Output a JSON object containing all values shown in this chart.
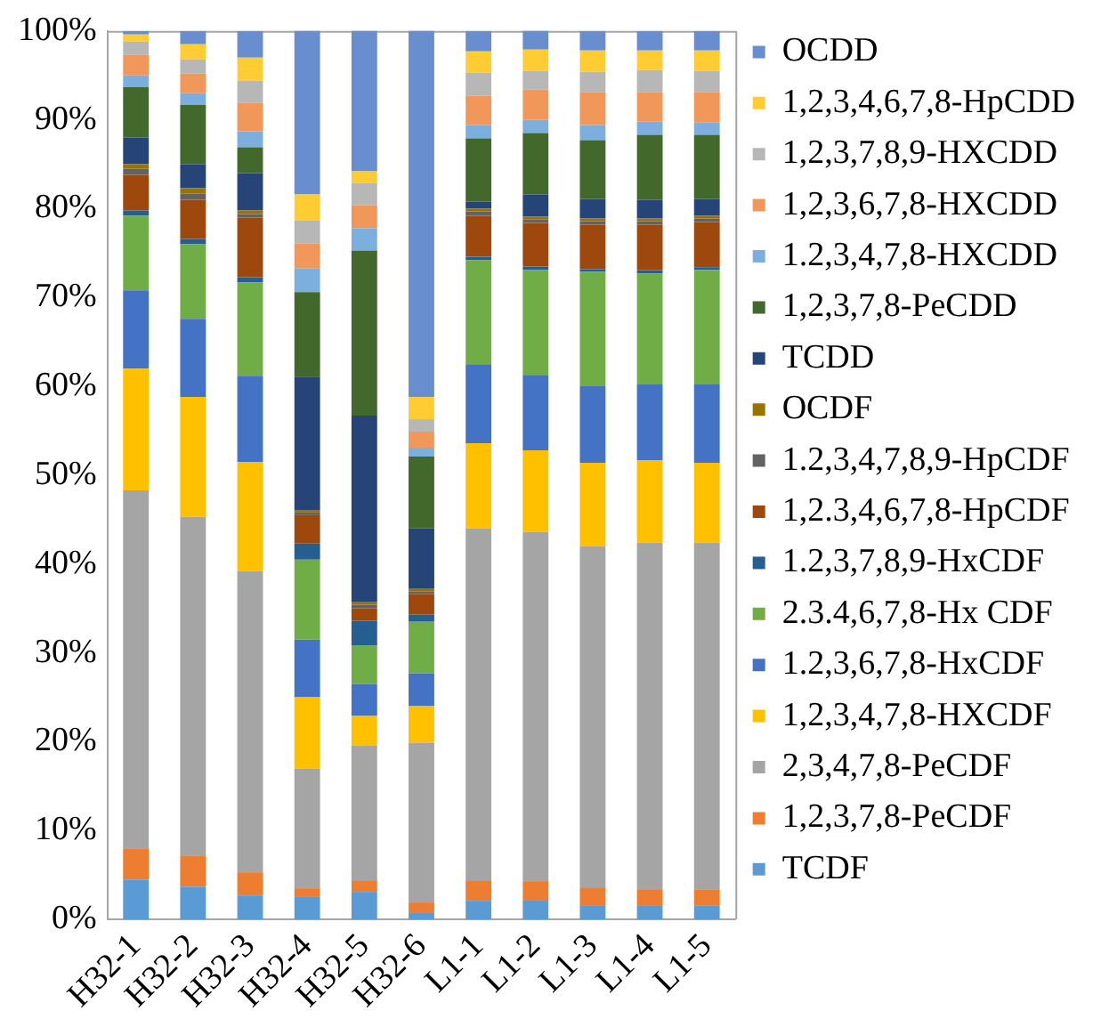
{
  "chart_data": {
    "type": "bar",
    "stacked": true,
    "categories": [
      "H32-1",
      "H32-2",
      "H32-3",
      "H32-4",
      "H32-5",
      "H32-6",
      "L1-1",
      "L1-2",
      "L1-3",
      "L1-4",
      "L1-5"
    ],
    "ylim": [
      0,
      100
    ],
    "yticks": [
      {
        "value": 0,
        "label": "0%"
      },
      {
        "value": 10,
        "label": "10%"
      },
      {
        "value": 20,
        "label": "20%"
      },
      {
        "value": 30,
        "label": "30%"
      },
      {
        "value": 40,
        "label": "40%"
      },
      {
        "value": 50,
        "label": "50%"
      },
      {
        "value": 60,
        "label": "60%"
      },
      {
        "value": 70,
        "label": "70%"
      },
      {
        "value": 80,
        "label": "80%"
      },
      {
        "value": 90,
        "label": "90%"
      },
      {
        "value": 100,
        "label": "100%"
      }
    ],
    "grid": false,
    "legend": "right",
    "series": [
      {
        "name": "TCDF",
        "color": "#5b9bd5",
        "values": [
          4.5,
          3.7,
          2.7,
          2.6,
          3.1,
          0.8,
          2.1,
          2.2,
          1.6,
          1.6,
          1.6
        ]
      },
      {
        "name": "1,2,3,7,8-PeCDF",
        "color": "#ed7d31",
        "values": [
          3.5,
          3.5,
          2.6,
          0.9,
          1.3,
          1.1,
          2.3,
          2.1,
          2.0,
          1.8,
          1.8
        ]
      },
      {
        "name": "2,3,4,7,8-PeCDF",
        "color": "#a5a5a5",
        "values": [
          40.3,
          38.1,
          33.9,
          13.5,
          15.2,
          18.0,
          39.6,
          39.3,
          38.4,
          39.0,
          39.0
        ]
      },
      {
        "name": "1,2,3,4,7,8-HXCDF",
        "color": "#ffc000",
        "values": [
          13.7,
          13.5,
          12.3,
          8.0,
          3.3,
          4.1,
          9.6,
          9.2,
          9.4,
          9.3,
          9.0
        ]
      },
      {
        "name": "1.2,3,6,7,8-HxCDF",
        "color": "#4472c4",
        "values": [
          8.8,
          8.8,
          9.7,
          6.5,
          3.6,
          3.7,
          8.9,
          8.5,
          8.6,
          8.5,
          8.8
        ]
      },
      {
        "name": "2.3.4,6,7,8-Hx CDF",
        "color": "#70ad47",
        "values": [
          8.4,
          8.4,
          10.5,
          9.0,
          4.3,
          5.8,
          11.7,
          11.8,
          12.9,
          12.5,
          12.9
        ]
      },
      {
        "name": "1.2,3,7,8,9-HxCDF",
        "color": "#255e91",
        "values": [
          0.6,
          0.6,
          0.6,
          1.8,
          2.8,
          0.8,
          0.4,
          0.4,
          0.3,
          0.4,
          0.3
        ]
      },
      {
        "name": "1,2.3,4,6,7,8-HpCDF",
        "color": "#9e480e",
        "values": [
          4.0,
          4.4,
          6.7,
          3.2,
          1.4,
          2.3,
          4.6,
          4.9,
          5.0,
          5.1,
          5.1
        ]
      },
      {
        "name": "1.2,3,4,7,8,9-HpCDF",
        "color": "#636363",
        "values": [
          0.7,
          0.7,
          0.4,
          0.3,
          0.4,
          0.3,
          0.5,
          0.4,
          0.4,
          0.4,
          0.4
        ]
      },
      {
        "name": "OCDF",
        "color": "#997300",
        "values": [
          0.5,
          0.6,
          0.4,
          0.3,
          0.3,
          0.3,
          0.3,
          0.3,
          0.3,
          0.3,
          0.3
        ]
      },
      {
        "name": "TCDD",
        "color": "#264478",
        "values": [
          3.0,
          2.7,
          4.2,
          15.0,
          21.0,
          6.8,
          0.8,
          2.5,
          2.2,
          2.1,
          1.9
        ]
      },
      {
        "name": "1,2,3,7,8-PeCDD",
        "color": "#43682b",
        "values": [
          5.7,
          6.7,
          2.9,
          9.5,
          18.6,
          8.1,
          7.1,
          6.9,
          6.6,
          7.3,
          7.2
        ]
      },
      {
        "name": "1.2,3,4,7,8-HXCDD",
        "color": "#7cafdd",
        "values": [
          1.3,
          1.3,
          1.8,
          2.7,
          2.5,
          1.0,
          1.5,
          1.5,
          1.7,
          1.5,
          1.4
        ]
      },
      {
        "name": "1,2,3,6,7,8-HXCDD",
        "color": "#f1975a",
        "values": [
          2.3,
          2.2,
          3.2,
          2.8,
          2.6,
          1.8,
          3.3,
          3.4,
          3.7,
          3.3,
          3.4
        ]
      },
      {
        "name": "1,2,3,7,8,9-HXCDD",
        "color": "#b7b7b7",
        "values": [
          1.5,
          1.6,
          2.5,
          2.6,
          2.5,
          1.4,
          2.6,
          2.1,
          2.3,
          2.5,
          2.4
        ]
      },
      {
        "name": "1,2,3,4,6,7,8-HpCDD",
        "color": "#ffcd33",
        "values": [
          0.8,
          1.7,
          2.6,
          2.9,
          1.3,
          2.5,
          2.4,
          2.4,
          2.4,
          2.2,
          2.3
        ]
      },
      {
        "name": "OCDD",
        "color": "#698ed0",
        "values": [
          0.4,
          1.5,
          3.0,
          18.5,
          15.9,
          41.4,
          2.3,
          2.2,
          2.2,
          2.2,
          2.2
        ]
      }
    ]
  }
}
